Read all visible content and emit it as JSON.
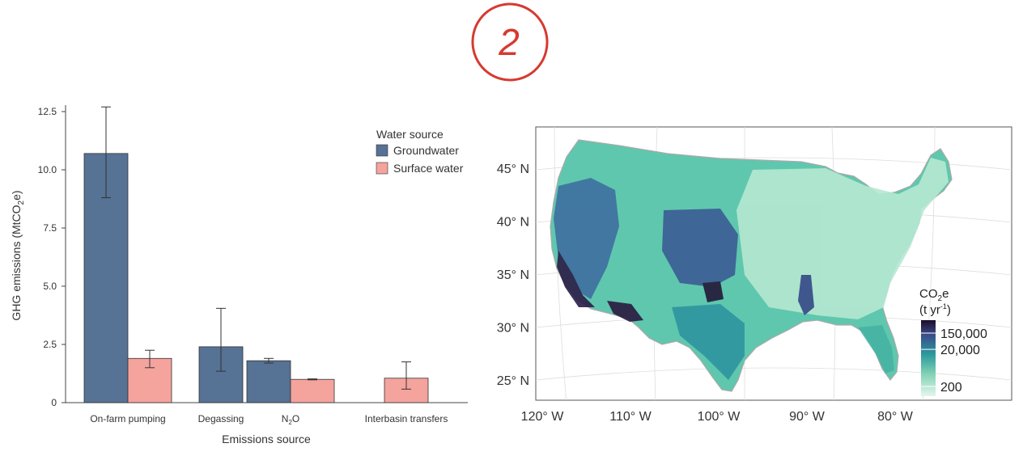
{
  "annotation": {
    "handwritten_number": "2"
  },
  "colors": {
    "groundwater": "#567294",
    "surface_water": "#f4a39d",
    "stamp": "#d63a30",
    "map_low": "#d9f3e4",
    "map_mid": "#2fa7a0",
    "map_high": "#2a1a40"
  },
  "chart_data": [
    {
      "type": "bar",
      "categories": [
        "On-farm pumping",
        "Degassing",
        "N2O",
        "Interbasin transfers"
      ],
      "category_labels": {
        "on_farm": "On-farm pumping",
        "degassing": "Degassing",
        "n2o_main": "N",
        "n2o_sub": "2",
        "n2o_tail": "O",
        "interbasin": "Interbasin transfers"
      },
      "series": [
        {
          "name": "Groundwater",
          "values": [
            10.7,
            2.4,
            1.8,
            null
          ],
          "error_low": [
            8.8,
            1.35,
            1.7,
            null
          ],
          "error_high": [
            12.7,
            4.05,
            1.9,
            null
          ]
        },
        {
          "name": "Surface water",
          "values": [
            1.9,
            null,
            1.0,
            1.05
          ],
          "error_low": [
            1.5,
            null,
            0.98,
            0.58
          ],
          "error_high": [
            2.25,
            null,
            1.02,
            1.75
          ]
        }
      ],
      "ylim": [
        0,
        12.5
      ],
      "yticks": [
        "0",
        "2.5",
        "5.0",
        "7.5",
        "10.0",
        "12.5"
      ],
      "ytick_values": [
        0,
        2.5,
        5,
        7.5,
        10,
        12.5
      ],
      "xlabel": "Emissions source",
      "ylabel_main": "GHG emissions (MtCO",
      "ylabel_sub": "2",
      "ylabel_tail": "e)",
      "legend_title": "Water source",
      "legend_placement": "top-right",
      "grid": false
    },
    {
      "type": "heatmap",
      "subtype": "choropleth-map",
      "lat_ticks": [
        "45° N",
        "40° N",
        "35° N",
        "30° N",
        "25° N"
      ],
      "lat_values": [
        45,
        40,
        35,
        30,
        25
      ],
      "lon_ticks": [
        "120° W",
        "110° W",
        "100° W",
        "90° W",
        "80° W"
      ],
      "lon_values": [
        -120,
        -110,
        -100,
        -90,
        -80
      ],
      "colorbar_title_main": "CO",
      "colorbar_title_sub": "2",
      "colorbar_title_tail": "e",
      "colorbar_units_main": "(t yr",
      "colorbar_units_sup": "-1",
      "colorbar_units_tail": ")",
      "colorbar_ticks": [
        "150,000",
        "20,000",
        "200"
      ],
      "colorbar_values": [
        150000,
        20000,
        200
      ],
      "colorbar_scale": "log",
      "colorbar_placement": "bottom-right"
    }
  ]
}
